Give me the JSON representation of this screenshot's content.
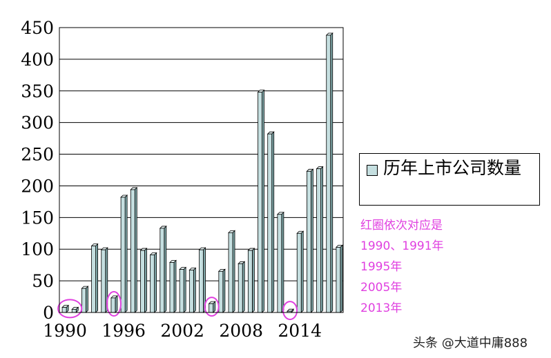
{
  "chart_data": {
    "type": "bar",
    "title": "",
    "xlabel": "",
    "ylabel": "",
    "ylim": [
      0,
      450
    ],
    "yticks": [
      "0",
      "50",
      "100",
      "150",
      "200",
      "250",
      "300",
      "350",
      "400",
      "450"
    ],
    "xtick_labels": [
      "1990",
      "1996",
      "2002",
      "2008",
      "2014"
    ],
    "grid": true,
    "legend_position": "right",
    "series": [
      {
        "name": "历年上市公司数量",
        "color": "#c5dfe0",
        "categories": [
          1990,
          1991,
          1992,
          1993,
          1994,
          1995,
          1996,
          1997,
          1998,
          1999,
          2000,
          2001,
          2002,
          2003,
          2004,
          2005,
          2006,
          2007,
          2008,
          2009,
          2010,
          2011,
          2012,
          2013,
          2014,
          2015,
          2016,
          2017,
          2018
        ],
        "values": [
          8,
          5,
          38,
          105,
          99,
          23,
          182,
          194,
          98,
          91,
          133,
          79,
          68,
          67,
          99,
          14,
          65,
          126,
          77,
          98,
          348,
          282,
          155,
          2,
          125,
          223,
          227,
          438,
          103
        ]
      }
    ],
    "highlighted_years": [
      1990,
      1991,
      1995,
      2005,
      2013
    ]
  },
  "legend": {
    "label": "历年上市公司数量"
  },
  "note": {
    "lines": [
      "红圈依次对应是",
      "1990、1991年",
      "1995年",
      "2005年",
      "2013年"
    ]
  },
  "watermark": "头条 @大道中庸888",
  "colors": {
    "bar": "#c5dfe0",
    "circle": "#e040e0",
    "note": "#e040e0"
  }
}
